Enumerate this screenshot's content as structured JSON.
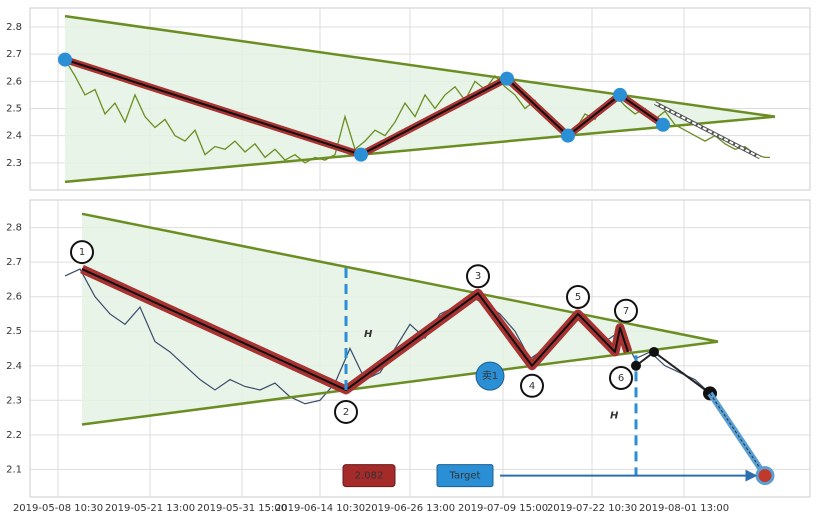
{
  "chart_data": [
    {
      "type": "line",
      "xlim": [
        0,
        780
      ],
      "ylim": [
        2.2,
        2.87
      ],
      "xticks": [
        28,
        120,
        212,
        290,
        380,
        473,
        562,
        654
      ],
      "yticks": [
        2.3,
        2.4,
        2.5,
        2.6,
        2.7,
        2.8
      ],
      "grid": true,
      "price": {
        "color": "#6b8e23",
        "x": [
          35,
          45,
          55,
          65,
          75,
          85,
          95,
          105,
          115,
          125,
          135,
          145,
          155,
          165,
          175,
          185,
          195,
          205,
          215,
          225,
          235,
          245,
          255,
          265,
          275,
          285,
          295,
          305,
          315,
          325,
          335,
          345,
          355,
          365,
          375,
          385,
          395,
          405,
          415,
          425,
          435,
          445,
          455,
          465,
          475,
          485,
          495,
          505,
          515,
          525,
          535,
          545,
          555,
          565,
          575,
          585,
          595,
          605,
          615,
          625,
          635,
          645,
          655,
          665,
          675,
          685,
          695,
          705,
          715,
          725,
          735,
          740
        ],
        "values": [
          2.68,
          2.62,
          2.55,
          2.57,
          2.48,
          2.52,
          2.45,
          2.55,
          2.47,
          2.43,
          2.46,
          2.4,
          2.38,
          2.42,
          2.33,
          2.36,
          2.35,
          2.38,
          2.34,
          2.37,
          2.32,
          2.35,
          2.31,
          2.33,
          2.3,
          2.32,
          2.31,
          2.33,
          2.47,
          2.35,
          2.38,
          2.42,
          2.4,
          2.45,
          2.52,
          2.47,
          2.55,
          2.5,
          2.55,
          2.58,
          2.53,
          2.6,
          2.57,
          2.62,
          2.58,
          2.55,
          2.5,
          2.53,
          2.47,
          2.45,
          2.4,
          2.42,
          2.48,
          2.46,
          2.52,
          2.55,
          2.51,
          2.48,
          2.5,
          2.46,
          2.49,
          2.44,
          2.42,
          2.4,
          2.38,
          2.4,
          2.37,
          2.35,
          2.36,
          2.33,
          2.32,
          2.32
        ]
      },
      "triangle": {
        "color": "#6b8e23",
        "fill": "#e3f2e3",
        "upper": {
          "x": [
            35,
            745
          ],
          "values": [
            2.84,
            2.47
          ]
        },
        "lower": {
          "x": [
            35,
            745
          ],
          "values": [
            2.23,
            2.47
          ]
        }
      },
      "zigzag": {
        "color": "#a83232",
        "x": [
          35,
          331,
          477,
          538,
          590,
          633
        ],
        "values": [
          2.68,
          2.33,
          2.61,
          2.4,
          2.55,
          2.44
        ]
      },
      "marker_color": "#2b8fd6",
      "projection": {
        "x": [
          625,
          730
        ],
        "values": [
          2.52,
          2.32
        ]
      }
    },
    {
      "type": "line",
      "xlim": [
        0,
        780
      ],
      "ylim": [
        2.02,
        2.88
      ],
      "xticks": [
        {
          "value": 28,
          "label": "2019-05-08 10:30"
        },
        {
          "value": 120,
          "label": "2019-05-21 13:00"
        },
        {
          "value": 212,
          "label": "2019-05-31 15:00"
        },
        {
          "value": 290,
          "label": "2019-06-14 10:30"
        },
        {
          "value": 380,
          "label": "2019-06-26 13:00"
        },
        {
          "value": 473,
          "label": "2019-07-09 15:00"
        },
        {
          "value": 562,
          "label": "2019-07-22 10:30"
        },
        {
          "value": 654,
          "label": "2019-08-01 13:00"
        }
      ],
      "yticks": [
        2.1,
        2.2,
        2.3,
        2.4,
        2.5,
        2.6,
        2.7,
        2.8
      ],
      "grid": true,
      "price": {
        "color": "#3a4a6b",
        "x": [
          35,
          50,
          65,
          80,
          95,
          110,
          125,
          140,
          155,
          170,
          185,
          200,
          215,
          230,
          245,
          260,
          275,
          290,
          305,
          320,
          335,
          350,
          365,
          380,
          395,
          410,
          425,
          440,
          455,
          470,
          485,
          500,
          515,
          530,
          545,
          560,
          575,
          590,
          605,
          620,
          635,
          650,
          665,
          680
        ],
        "values": [
          2.66,
          2.68,
          2.6,
          2.55,
          2.52,
          2.57,
          2.47,
          2.44,
          2.4,
          2.36,
          2.33,
          2.36,
          2.34,
          2.33,
          2.35,
          2.31,
          2.29,
          2.3,
          2.35,
          2.45,
          2.36,
          2.38,
          2.45,
          2.52,
          2.48,
          2.55,
          2.57,
          2.6,
          2.58,
          2.55,
          2.5,
          2.42,
          2.45,
          2.5,
          2.55,
          2.5,
          2.47,
          2.5,
          2.42,
          2.44,
          2.4,
          2.38,
          2.36,
          2.32
        ]
      },
      "triangle": {
        "color": "#6b8e23",
        "fill": "#e3f2e3",
        "upper": {
          "x": [
            52,
            688
          ],
          "values": [
            2.84,
            2.47
          ]
        },
        "lower": {
          "x": [
            52,
            688
          ],
          "values": [
            2.23,
            2.47
          ]
        }
      },
      "zigzag": {
        "color": "#a83232",
        "x": [
          52,
          316,
          448,
          502,
          548,
          585,
          590,
          598
        ],
        "values": [
          2.68,
          2.33,
          2.61,
          2.4,
          2.55,
          2.44,
          2.51,
          2.44
        ]
      },
      "point_labels": [
        "1",
        "2",
        "3",
        "4",
        "5",
        "6",
        "7"
      ],
      "projection": {
        "x": [
          606,
          624,
          680
        ],
        "values": [
          2.4,
          2.44,
          2.32
        ]
      },
      "target_path": {
        "color": "#5a9fd4",
        "x": [
          680,
          735
        ],
        "values": [
          2.32,
          2.082
        ]
      },
      "target": {
        "label": "Target",
        "value": 2.082,
        "x": [
          470,
          725
        ]
      },
      "signal": {
        "label": "卖1",
        "x": 460,
        "value": 2.37
      },
      "heights": [
        {
          "label": "H",
          "x": 316,
          "values": [
            2.33,
            2.69
          ]
        },
        {
          "label": "H",
          "x": 606,
          "values": [
            2.43,
            2.082
          ]
        }
      ]
    }
  ]
}
